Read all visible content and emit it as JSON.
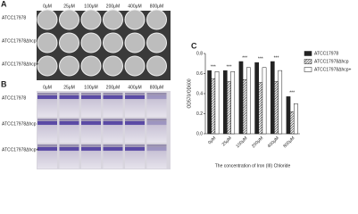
{
  "panels": {
    "a": {
      "label": "A",
      "columns": [
        "0μM",
        "25μM",
        "100μM",
        "200μM",
        "400μM",
        "800μM"
      ],
      "rows": [
        "ATCC17978",
        "ATCC17978Δhcp",
        "ATCC17978Δhcp+"
      ]
    },
    "b": {
      "label": "B",
      "columns": [
        "0μM",
        "25μM",
        "100μM",
        "200μM",
        "400μM",
        "800μM"
      ],
      "rows": [
        "ATCC17978",
        "ATCC17978Δhcp",
        "ATCC17978Δhcp+"
      ]
    }
  },
  "chart_data": {
    "type": "bar",
    "panel_label": "C",
    "y_label": "OD570/OD600",
    "x_label": "The concentration of Iron (III) Chloride",
    "categories": [
      "0μM",
      "25μM",
      "100μM",
      "200μM",
      "400μM",
      "800μM"
    ],
    "series": [
      {
        "name": "ATCC17978",
        "color": "#222222",
        "values": [
          0.63,
          0.63,
          0.72,
          0.71,
          0.72,
          0.37
        ]
      },
      {
        "name": "ATCC17978Δhcp",
        "color": "#222222",
        "pattern": "hatch",
        "values": [
          0.55,
          0.52,
          0.54,
          0.51,
          0.52,
          0.22
        ]
      },
      {
        "name": "ATCC17978Δhcp+",
        "color": "#ffffff",
        "values": [
          0.62,
          0.62,
          0.66,
          0.66,
          0.63,
          0.3
        ]
      }
    ],
    "significance": [
      "***",
      "***",
      "***",
      "***",
      "***",
      "***"
    ],
    "ylim": [
      0,
      0.8
    ],
    "yticks": [
      {
        "value": 0,
        "label": "0.0"
      },
      0.2,
      0.4,
      0.6,
      0.8
    ],
    "legend": "right"
  }
}
